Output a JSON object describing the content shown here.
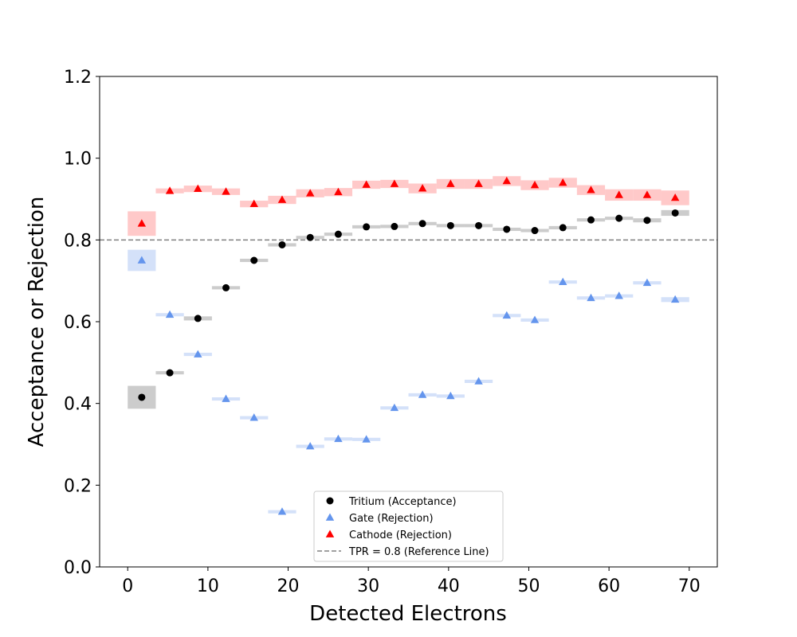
{
  "chart_data": {
    "type": "scatter",
    "title": "",
    "xlabel": "Detected Electrons",
    "ylabel": "Acceptance or Rejection",
    "xlim": [
      -3.5,
      73.5
    ],
    "ylim": [
      0.0,
      1.2
    ],
    "xticks": [
      0,
      10,
      20,
      30,
      40,
      50,
      60,
      70
    ],
    "yticks": [
      0.0,
      0.2,
      0.4,
      0.6,
      0.8,
      1.0,
      1.2
    ],
    "bin_edges": [
      0.0,
      3.5,
      7.0,
      10.5,
      14.0,
      17.5,
      21.0,
      24.5,
      28.0,
      31.5,
      35.0,
      38.5,
      42.0,
      45.5,
      49.0,
      52.5,
      56.0,
      59.5,
      63.0,
      66.5,
      70.0
    ],
    "x": [
      1.75,
      5.25,
      8.75,
      12.25,
      15.75,
      19.25,
      22.75,
      26.25,
      29.75,
      33.25,
      36.75,
      40.25,
      43.75,
      47.25,
      50.75,
      54.25,
      57.75,
      61.25,
      64.75,
      68.25
    ],
    "legend_position": "lower center",
    "grid": false,
    "series": [
      {
        "name": "Tritium (Acceptance)",
        "marker": "circle",
        "color": "#000000",
        "band_color": "#bfbfbf",
        "values": [
          0.415,
          0.475,
          0.608,
          0.683,
          0.75,
          0.788,
          0.806,
          0.814,
          0.832,
          0.833,
          0.84,
          0.835,
          0.835,
          0.826,
          0.823,
          0.83,
          0.849,
          0.853,
          0.848,
          0.866
        ],
        "errors": [
          0.028,
          0.004,
          0.005,
          0.004,
          0.004,
          0.004,
          0.004,
          0.004,
          0.004,
          0.004,
          0.004,
          0.004,
          0.004,
          0.004,
          0.004,
          0.004,
          0.004,
          0.004,
          0.005,
          0.007
        ]
      },
      {
        "name": "Gate (Rejection)",
        "marker": "triangle",
        "color": "#6495ed",
        "band_color": "#c9d9f7",
        "values": [
          0.75,
          0.617,
          0.52,
          0.411,
          0.365,
          0.135,
          0.295,
          0.313,
          0.312,
          0.389,
          0.421,
          0.418,
          0.454,
          0.615,
          0.604,
          0.697,
          0.658,
          0.663,
          0.695,
          0.654
        ],
        "errors": [
          0.026,
          0.004,
          0.004,
          0.004,
          0.004,
          0.004,
          0.004,
          0.004,
          0.004,
          0.004,
          0.004,
          0.004,
          0.004,
          0.004,
          0.004,
          0.004,
          0.004,
          0.004,
          0.004,
          0.006
        ]
      },
      {
        "name": "Cathode (Rejection)",
        "marker": "triangle",
        "color": "#ff0000",
        "band_color": "#ffbcbc",
        "values": [
          0.84,
          0.92,
          0.925,
          0.918,
          0.888,
          0.898,
          0.914,
          0.917,
          0.935,
          0.937,
          0.926,
          0.937,
          0.937,
          0.944,
          0.934,
          0.94,
          0.922,
          0.91,
          0.91,
          0.903
        ],
        "errors": [
          0.03,
          0.006,
          0.008,
          0.008,
          0.008,
          0.01,
          0.01,
          0.01,
          0.01,
          0.01,
          0.012,
          0.012,
          0.012,
          0.012,
          0.012,
          0.012,
          0.012,
          0.014,
          0.014,
          0.018
        ]
      }
    ],
    "reference_line": {
      "name": "TPR = 0.8 (Reference Line)",
      "y": 0.8,
      "color": "#808080",
      "style": "dashed"
    }
  }
}
